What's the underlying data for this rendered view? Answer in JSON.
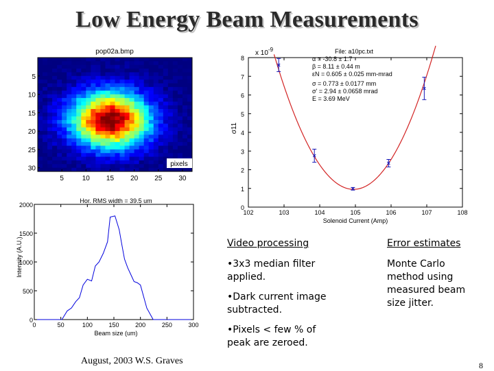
{
  "slide": {
    "title": "Low Energy Beam Measurements",
    "footer": "August, 2003 W.S. Graves",
    "page_number": "8"
  },
  "text_blocks": {
    "video_heading": "Video processing",
    "video_items": [
      "•3x3 median filter applied.",
      "•Dark current image subtracted.",
      "•Pixels < few % of peak are zeroed."
    ],
    "error_heading": "Error estimates",
    "error_body": "Monte Carlo method using measured beam size jitter."
  },
  "colors": {
    "error_bar": "#1515b5",
    "fit_curve": "#d22222",
    "profile_line": "#0000dd"
  },
  "chart_data": [
    {
      "type": "heatmap",
      "title": "pop02a.bmp",
      "unit_label": "pixels",
      "x_ticks": [
        5,
        10,
        15,
        20,
        25,
        30
      ],
      "y_ticks": [
        5,
        10,
        15,
        20,
        25,
        30
      ],
      "xlim": [
        0,
        32
      ],
      "ylim": [
        0,
        31
      ],
      "peak": {
        "x": 15,
        "y": 17
      },
      "colormap": "jet"
    },
    {
      "type": "scatter",
      "series_with_fit": true,
      "scale_label": "x 10",
      "scale_exponent": "-9",
      "ylabel": "σ11",
      "xlabel": "Solenoid Current (Amp)",
      "xlim": [
        102,
        108
      ],
      "ylim": [
        0,
        8
      ],
      "x_ticks": [
        "102",
        "103",
        "104",
        "105",
        "106",
        "107",
        "108"
      ],
      "y_ticks": [
        "0",
        "1",
        "2",
        "3",
        "4",
        "5",
        "6",
        "7",
        "8"
      ],
      "points": [
        {
          "x": 102.85,
          "y": 7.6,
          "err": 0.35
        },
        {
          "x": 103.85,
          "y": 2.75,
          "err": 0.35
        },
        {
          "x": 104.93,
          "y": 0.98,
          "err": 0.07
        },
        {
          "x": 105.93,
          "y": 2.35,
          "err": 0.2
        },
        {
          "x": 106.93,
          "y": 6.35,
          "err": 0.6
        }
      ],
      "fit": {
        "type": "parabola",
        "vertex_x": 104.95,
        "vertex_y": 0.95,
        "x_range": [
          102.72,
          107.25
        ]
      },
      "annotation": [
        "File: a10pc.txt",
        "α = -30.8 ± 1.7",
        "β = 8.11 ± 0.44 m",
        "εN = 0.605 ± 0.025 mm-mrad",
        "σ = 0.773 ± 0.0177 mm",
        "σ' = 2.94 ± 0.0658 mrad",
        "E = 3.69 MeV"
      ]
    },
    {
      "type": "line",
      "title": "Hor. RMS width = 39.5 um",
      "xlabel": "Beam size (um)",
      "ylabel": "Intensity (A.U.)",
      "xlim": [
        0,
        300
      ],
      "ylim": [
        0,
        2000
      ],
      "x_ticks": [
        0,
        50,
        100,
        150,
        200,
        250,
        300
      ],
      "y_ticks": [
        0,
        500,
        1000,
        1500,
        2000
      ],
      "x": [
        0,
        20,
        40,
        52,
        62,
        70,
        78,
        85,
        92,
        100,
        108,
        115,
        122,
        130,
        138,
        143,
        148,
        152,
        156,
        160,
        165,
        170,
        176,
        182,
        188,
        194,
        200,
        206,
        212,
        218,
        224,
        230,
        300
      ],
      "y": [
        0,
        0,
        0,
        0,
        150,
        200,
        310,
        380,
        600,
        700,
        670,
        930,
        1000,
        1150,
        1350,
        1780,
        1790,
        1800,
        1680,
        1560,
        1300,
        1050,
        900,
        780,
        660,
        640,
        600,
        400,
        200,
        100,
        0,
        0,
        0
      ]
    }
  ]
}
